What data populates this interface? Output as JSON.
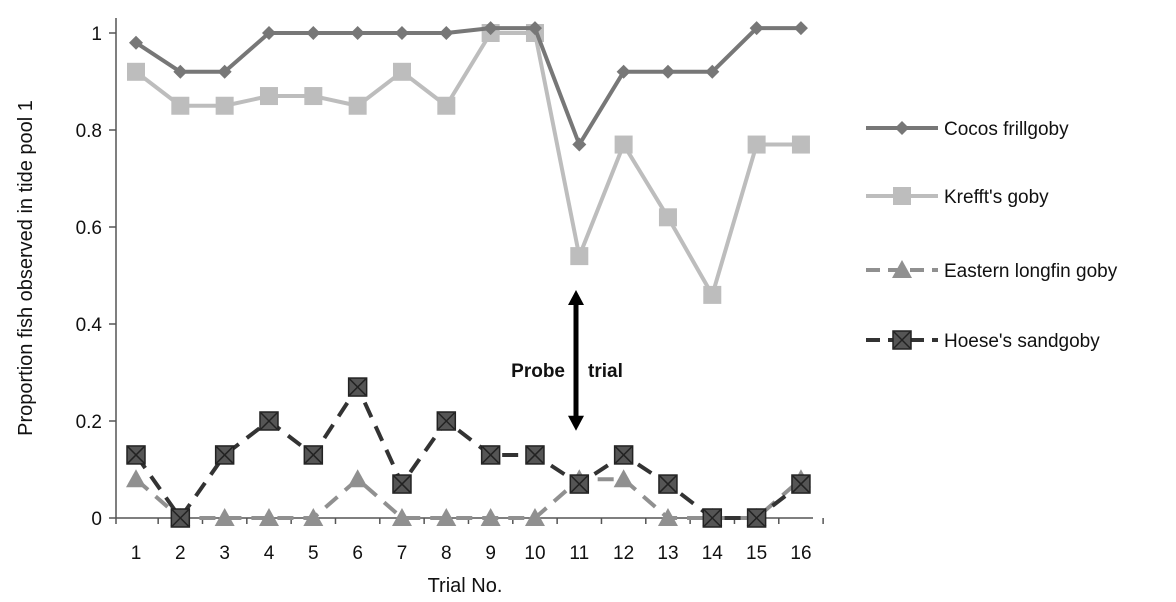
{
  "chart_data": {
    "type": "line",
    "xlabel": "Trial No.",
    "ylabel": "Proportion fish observed in tide pool 1",
    "x": [
      1,
      2,
      3,
      4,
      5,
      6,
      7,
      8,
      9,
      10,
      11,
      12,
      13,
      14,
      15,
      16
    ],
    "x_tick_labels": [
      "1",
      "2",
      "3",
      "4",
      "5",
      "6",
      "7",
      "8",
      "9",
      "10",
      "11",
      "12",
      "13",
      "14",
      "15",
      "16"
    ],
    "ylim": [
      0,
      1
    ],
    "y_ticks": [
      0,
      0.2,
      0.4,
      0.6,
      0.8,
      1
    ],
    "y_tick_labels": [
      "0",
      "0.2",
      "0.4",
      "0.6",
      "0.8",
      "1"
    ],
    "grid": false,
    "legend_position": "right",
    "series": [
      {
        "name": "Cocos frillgoby",
        "color": "#777777",
        "marker": "diamond",
        "dash": "solid",
        "values": [
          0.98,
          0.92,
          0.92,
          1.0,
          1.0,
          1.0,
          1.0,
          1.0,
          1.01,
          1.01,
          0.77,
          0.92,
          0.92,
          0.92,
          1.01,
          1.01
        ]
      },
      {
        "name": "Krefft's goby",
        "color": "#bdbdbd",
        "marker": "square",
        "dash": "solid",
        "values": [
          0.92,
          0.85,
          0.85,
          0.87,
          0.87,
          0.85,
          0.92,
          0.85,
          1.0,
          1.0,
          0.54,
          0.77,
          0.62,
          0.46,
          0.77,
          0.77
        ]
      },
      {
        "name": "Eastern longfin goby",
        "color": "#909090",
        "marker": "triangle",
        "dash": "dashed",
        "values": [
          0.08,
          0.0,
          0.0,
          0.0,
          0.0,
          0.08,
          0.0,
          0.0,
          0.0,
          0.0,
          0.08,
          0.08,
          0.0,
          0.0,
          0.0,
          0.08
        ]
      },
      {
        "name": "Hoese's sandgoby",
        "color": "#333333",
        "marker": "square-x",
        "dash": "dashed",
        "values": [
          0.13,
          0.0,
          0.13,
          0.2,
          0.13,
          0.27,
          0.07,
          0.2,
          0.13,
          0.13,
          0.07,
          0.13,
          0.07,
          0.0,
          0.0,
          0.07
        ]
      }
    ],
    "annotations": [
      {
        "text_left": "Probe",
        "text_right": "trial",
        "x": 11,
        "y_from": 0.18,
        "y_to": 0.47,
        "arrow": "double-headed"
      }
    ]
  }
}
